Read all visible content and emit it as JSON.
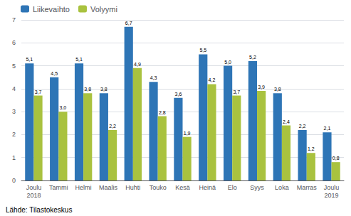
{
  "chart_data": {
    "type": "bar",
    "categories": [
      "Joulu\n2018",
      "Tammi",
      "Helmi",
      "Maalis",
      "Huhti",
      "Touko",
      "Kesä",
      "Heinä",
      "Elo",
      "Syys",
      "Loka",
      "Marras",
      "Joulu\n2019"
    ],
    "series": [
      {
        "name": "Liikevaihto",
        "color": "#2E75B6",
        "values": [
          5.1,
          4.5,
          5.1,
          3.8,
          6.7,
          4.3,
          3.6,
          5.5,
          5.0,
          5.2,
          3.8,
          2.2,
          2.1
        ],
        "value_labels": [
          "5,1",
          "4,5",
          "5,1",
          "3,8",
          "6,7",
          "4,3",
          "3,6",
          "5,5",
          "5,0",
          "5,2",
          "3,8",
          "2,2",
          "2,1"
        ]
      },
      {
        "name": "Volyymi",
        "color": "#A9C23F",
        "values": [
          3.7,
          3.0,
          3.8,
          2.2,
          4.9,
          2.8,
          1.9,
          4.2,
          3.7,
          3.9,
          2.4,
          1.2,
          0.8
        ],
        "value_labels": [
          "3,7",
          "3,0",
          "3,8",
          "2,2",
          "4,9",
          "2,8",
          "1,9",
          "4,2",
          "3,7",
          "3,9",
          "2,4",
          "1,2",
          "0,8"
        ]
      }
    ],
    "ylim": [
      0,
      7
    ],
    "yticks": [
      0,
      1,
      2,
      3,
      4,
      5,
      6,
      7
    ],
    "grid": true,
    "legend": "upper left",
    "data_labels": true,
    "annotations": [
      "Lähde: Tilastokeskus"
    ]
  }
}
